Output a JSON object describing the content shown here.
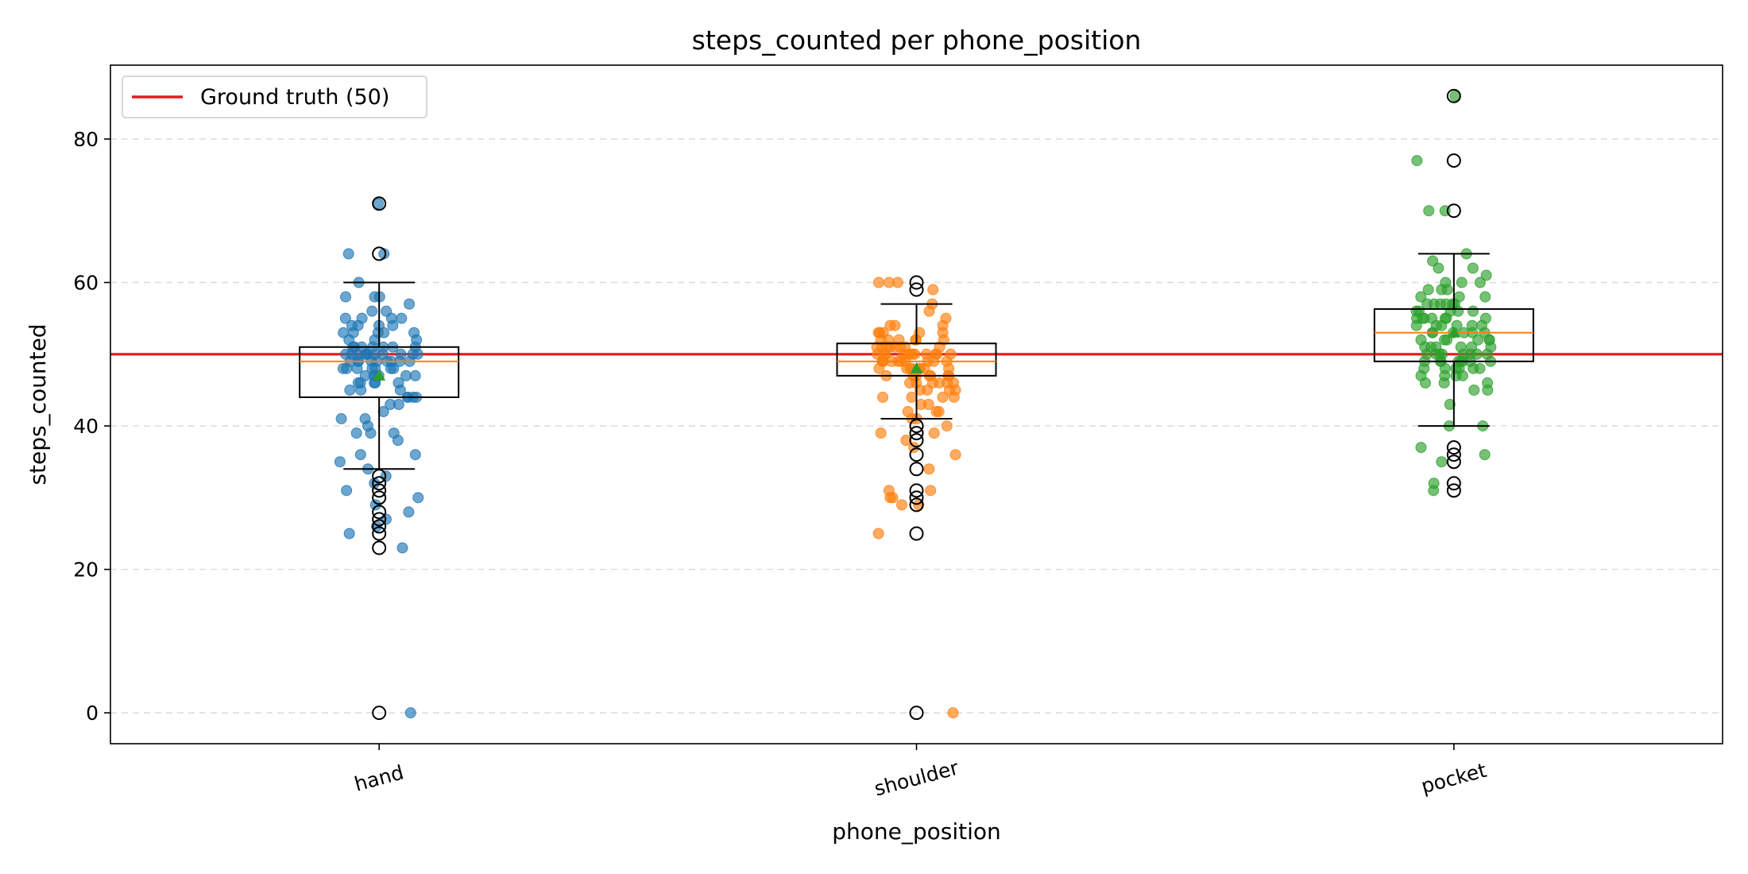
{
  "chart_data": {
    "type": "box",
    "title": "steps_counted per phone_position",
    "xlabel": "phone_position",
    "ylabel": "steps_counted",
    "categories": [
      "hand",
      "shoulder",
      "pocket"
    ],
    "ylim": [
      -4.3,
      90.3
    ],
    "yticks": [
      0,
      20,
      40,
      60,
      80
    ],
    "grid": "y-dashed",
    "reference_line": {
      "label": "Ground truth (50)",
      "value": 50,
      "color": "#e41a1c"
    },
    "legend_location": "top-left",
    "colors": {
      "box": "#000000",
      "median": "#ff7f0e",
      "mean_marker": "#2ca02c",
      "outlier_edge": "#000000"
    },
    "series": [
      {
        "category": "hand",
        "color": "#1f77b4",
        "box": {
          "q1": 44,
          "median": 49,
          "mean": 47,
          "q3": 51,
          "whisker_low": 34,
          "whisker_high": 60
        },
        "outliers": [
          71,
          64,
          33,
          32,
          31,
          30,
          28,
          27,
          26,
          25,
          23,
          0
        ],
        "points": [
          71,
          64,
          64,
          60,
          58,
          58,
          58,
          57,
          56,
          56,
          55,
          55,
          55,
          55,
          54,
          54,
          54,
          54,
          53,
          53,
          53,
          53,
          53,
          52,
          52,
          52,
          51,
          51,
          51,
          51,
          51,
          51,
          51,
          50,
          50,
          50,
          50,
          50,
          50,
          50,
          50,
          50,
          50,
          50,
          49,
          49,
          49,
          49,
          49,
          49,
          49,
          49,
          49,
          48,
          48,
          48,
          48,
          48,
          48,
          48,
          47,
          47,
          47,
          47,
          47,
          47,
          46,
          46,
          46,
          46,
          46,
          45,
          45,
          45,
          44,
          44,
          44,
          44,
          43,
          43,
          42,
          41,
          41,
          40,
          39,
          39,
          39,
          38,
          36,
          36,
          35,
          34,
          33,
          32,
          31,
          30,
          29,
          28,
          27,
          26,
          25,
          23,
          0
        ]
      },
      {
        "category": "shoulder",
        "color": "#ff7f0e",
        "box": {
          "q1": 47,
          "median": 49,
          "mean": 48,
          "q3": 51.5,
          "whisker_low": 41,
          "whisker_high": 57
        },
        "outliers": [
          60,
          59,
          40,
          39,
          38,
          36,
          34,
          31,
          30,
          29,
          25,
          0
        ],
        "points": [
          60,
          60,
          60,
          59,
          57,
          56,
          55,
          54,
          54,
          54,
          53,
          53,
          53,
          53,
          53,
          52,
          52,
          52,
          52,
          52,
          52,
          51,
          51,
          51,
          51,
          51,
          51,
          51,
          51,
          50,
          50,
          50,
          50,
          50,
          50,
          50,
          50,
          50,
          50,
          50,
          50,
          49,
          49,
          49,
          49,
          49,
          49,
          49,
          49,
          49,
          49,
          48,
          48,
          48,
          48,
          48,
          48,
          48,
          48,
          47,
          47,
          47,
          47,
          47,
          47,
          47,
          46,
          46,
          46,
          46,
          46,
          46,
          45,
          45,
          45,
          45,
          44,
          44,
          44,
          44,
          43,
          43,
          42,
          42,
          42,
          41,
          41,
          40,
          39,
          39,
          38,
          37,
          36,
          34,
          31,
          31,
          30,
          30,
          29,
          29,
          25,
          0
        ]
      },
      {
        "category": "pocket",
        "color": "#2ca02c",
        "box": {
          "q1": 49,
          "median": 53,
          "mean": 53,
          "q3": 56.3,
          "whisker_low": 40,
          "whisker_high": 64
        },
        "outliers": [
          86,
          77,
          70,
          37,
          36,
          35,
          32,
          31
        ],
        "points": [
          86,
          77,
          70,
          70,
          64,
          63,
          62,
          62,
          61,
          60,
          60,
          60,
          59,
          59,
          59,
          58,
          58,
          58,
          57,
          57,
          57,
          57,
          57,
          57,
          56,
          56,
          56,
          56,
          56,
          55,
          55,
          55,
          55,
          55,
          55,
          55,
          54,
          54,
          54,
          54,
          54,
          54,
          53,
          53,
          53,
          53,
          53,
          53,
          52,
          52,
          52,
          52,
          52,
          52,
          51,
          51,
          51,
          51,
          51,
          51,
          50,
          50,
          50,
          50,
          50,
          50,
          50,
          50,
          49,
          49,
          49,
          49,
          49,
          49,
          49,
          49,
          48,
          48,
          48,
          48,
          48,
          48,
          47,
          47,
          47,
          47,
          46,
          46,
          46,
          45,
          45,
          43,
          40,
          40,
          37,
          36,
          35,
          32,
          31
        ]
      }
    ]
  }
}
